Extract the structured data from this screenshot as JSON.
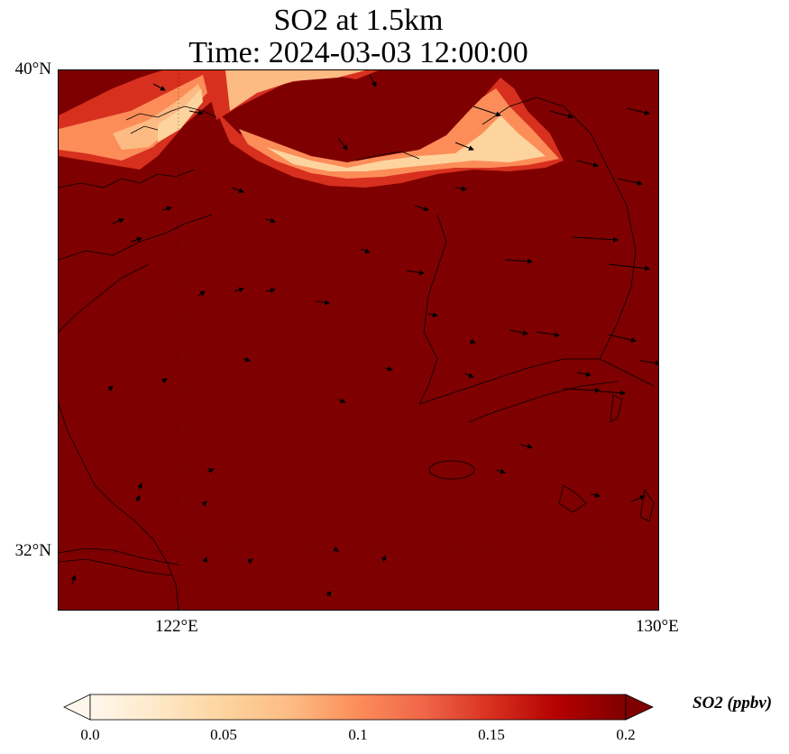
{
  "title": {
    "line1": "SO2 at 1.5km",
    "line2": "Time: 2024-03-03 12:00:00"
  },
  "map": {
    "lat_labels": [
      "40°N",
      "32°N"
    ],
    "lon_labels": [
      "122°E",
      "130°E"
    ],
    "extent": {
      "lon_min": 120,
      "lon_max": 130,
      "lat_min": 31,
      "lat_max": 40
    },
    "gridlines_dotted": true,
    "field_color": "#7f0000",
    "plume_colors": [
      "#fdd49e",
      "#fc8d59",
      "#d7301f",
      "#b30000"
    ],
    "vector_color": "#000000"
  },
  "colorbar": {
    "label": "SO2 (ppbv)",
    "ticks": [
      "0.0",
      "0.05",
      "0.1",
      "0.15",
      "0.2"
    ],
    "vmin": 0.0,
    "vmax": 0.2,
    "extend": "both",
    "colormap": [
      "#fff7ec",
      "#fee8c8",
      "#fdd49e",
      "#fdbb84",
      "#fc8d59",
      "#ef6548",
      "#d7301f",
      "#b30000",
      "#7f0000"
    ]
  }
}
